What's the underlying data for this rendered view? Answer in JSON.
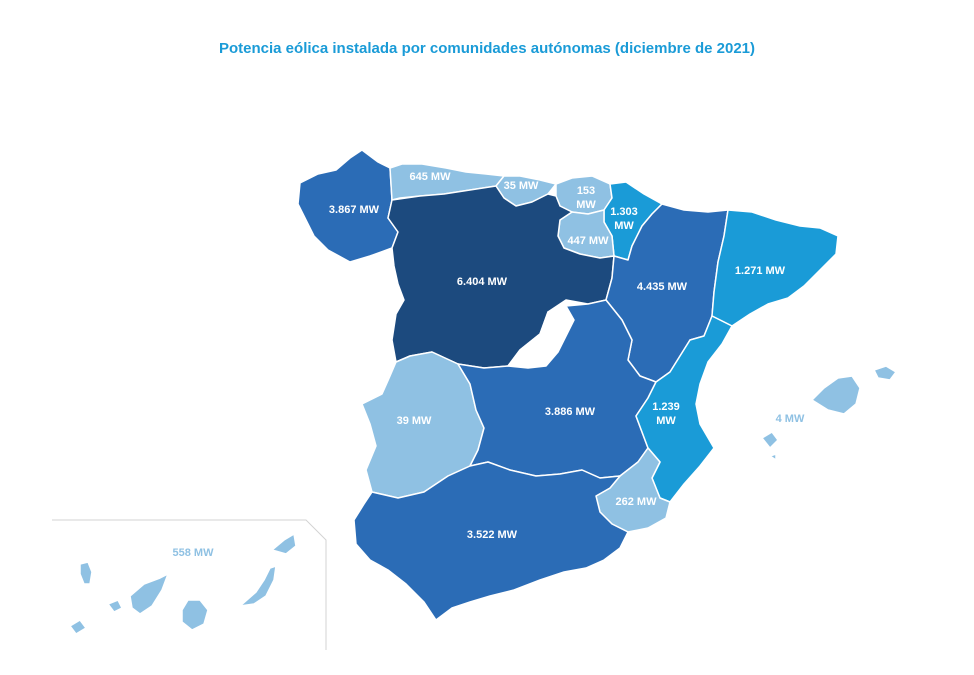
{
  "title": "Potencia eólica instalada por comunidades autónomas (diciembre de 2021)",
  "colors": {
    "very_high": "#1c4a7e",
    "high": "#2b6cb6",
    "medium": "#1a9bd7",
    "low": "#8fc1e3",
    "title": "#1a9bd7",
    "border": "#ffffff",
    "inset_border": "#d3d3d3"
  },
  "regions": {
    "galicia": {
      "value": "3.867 MW",
      "level": "high"
    },
    "asturias": {
      "value": "645 MW",
      "level": "low"
    },
    "cantabria": {
      "value": "35 MW",
      "level": "low"
    },
    "pais_vasco": {
      "value": "153",
      "unit": "MW",
      "level": "low"
    },
    "navarra": {
      "value": "1.303",
      "unit": "MW",
      "level": "medium"
    },
    "la_rioja": {
      "value": "447 MW",
      "level": "low"
    },
    "castilla_y_leon": {
      "value": "6.404 MW",
      "level": "very_high"
    },
    "aragon": {
      "value": "4.435 MW",
      "level": "high"
    },
    "cataluna": {
      "value": "1.271 MW",
      "level": "medium"
    },
    "extremadura": {
      "value": "39 MW",
      "level": "low"
    },
    "castilla_la_mancha": {
      "value": "3.886 MW",
      "level": "high"
    },
    "comunidad_valenciana": {
      "value": "1.239",
      "unit": "MW",
      "level": "medium"
    },
    "murcia": {
      "value": "262 MW",
      "level": "low"
    },
    "andalucia": {
      "value": "3.522 MW",
      "level": "high"
    },
    "baleares": {
      "value": "4 MW",
      "level": "low"
    },
    "canarias": {
      "value": "558 MW",
      "level": "low"
    },
    "madrid": {
      "value": "",
      "level": "none"
    }
  }
}
